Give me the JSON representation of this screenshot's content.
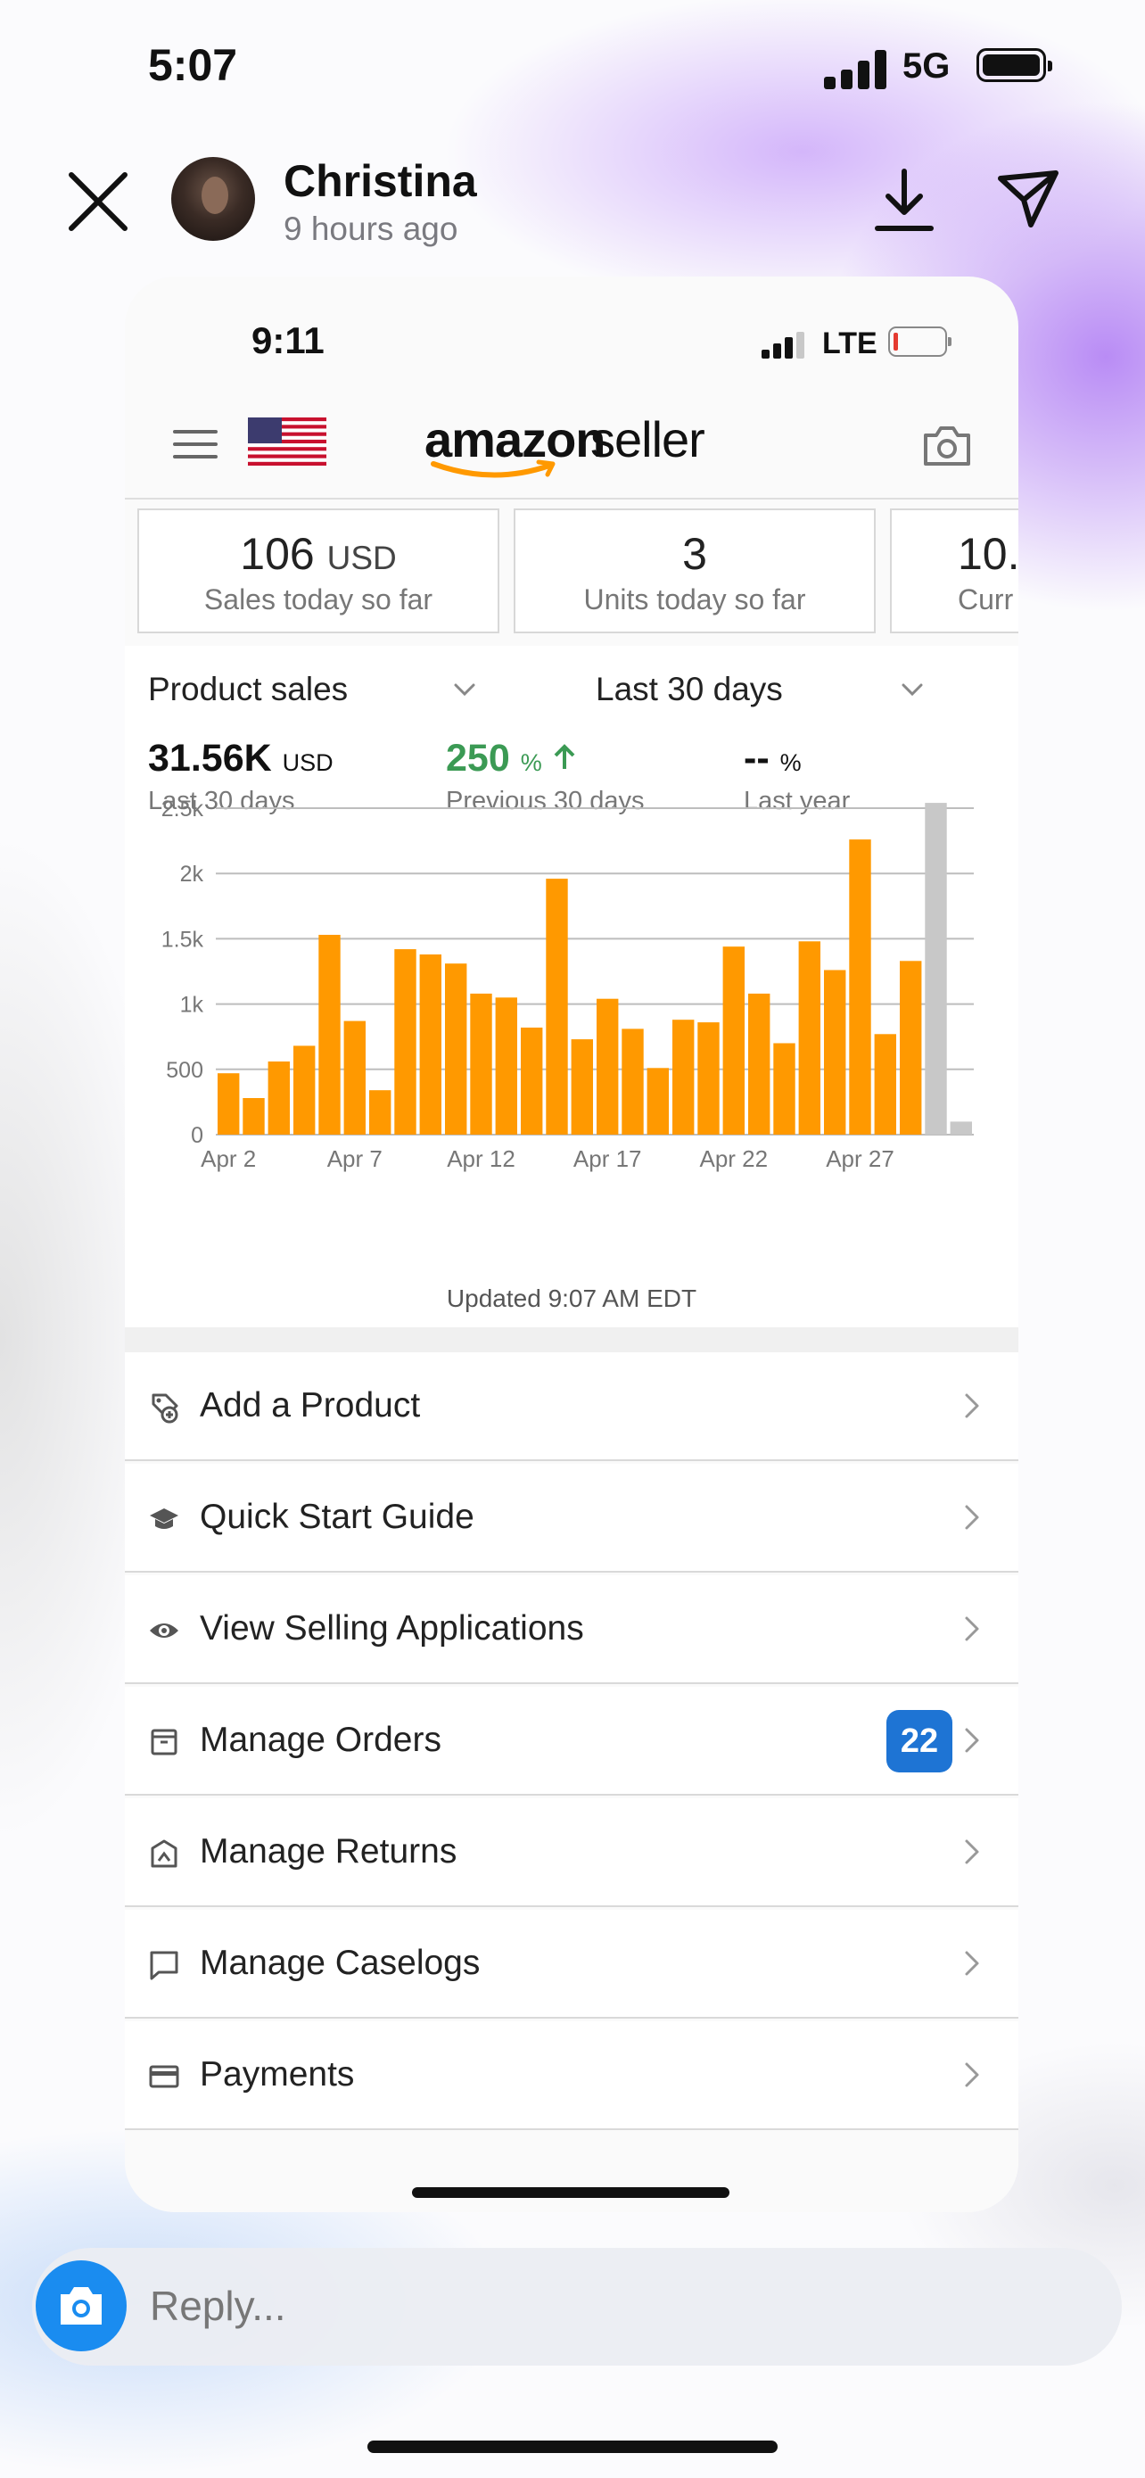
{
  "status_bar": {
    "time": "5:07",
    "network": "5G"
  },
  "story_header": {
    "user_name": "Christina",
    "time_ago": "9 hours ago"
  },
  "screenshot": {
    "status_bar": {
      "time": "9:11",
      "network": "LTE"
    },
    "header": {
      "logo_primary": "amazon",
      "logo_secondary": "seller",
      "icons": [
        "menu-icon",
        "us-flag-icon",
        "camera-icon"
      ]
    },
    "stats": [
      {
        "value": "106",
        "unit": "USD",
        "label": "Sales today so far"
      },
      {
        "value": "3",
        "unit": "",
        "label": "Units today so far"
      },
      {
        "value": "10.",
        "unit": "",
        "label": "Curr"
      }
    ],
    "sales": {
      "metric_dropdown": "Product sales",
      "range_dropdown": "Last 30 days",
      "metrics": [
        {
          "value": "31.56K",
          "unit": "USD",
          "label": "Last 30 days"
        },
        {
          "value": "250",
          "unit": "%",
          "label": "Previous 30 days"
        },
        {
          "value": "--",
          "unit": "%",
          "label": "Last year"
        }
      ],
      "updated": "Updated 9:07 AM EDT"
    },
    "menu": [
      {
        "label": "Add a Product",
        "icon": "add-product-icon"
      },
      {
        "label": "Quick Start Guide",
        "icon": "graduation-cap-icon"
      },
      {
        "label": "View Selling Applications",
        "icon": "eye-icon"
      },
      {
        "label": "Manage Orders",
        "icon": "box-icon",
        "badge": "22"
      },
      {
        "label": "Manage Returns",
        "icon": "return-icon"
      },
      {
        "label": "Manage Caselogs",
        "icon": "chat-icon"
      },
      {
        "label": "Payments",
        "icon": "card-icon"
      }
    ]
  },
  "reply": {
    "placeholder": "Reply..."
  },
  "colors": {
    "bar": "#FF9900",
    "bar_today": "#C8C8C8",
    "accent_blue": "#1E74D4",
    "positive_green": "#3B9A54"
  },
  "chart_data": {
    "type": "bar",
    "categories": [
      "Apr 2",
      "Apr 3",
      "Apr 4",
      "Apr 5",
      "Apr 6",
      "Apr 7",
      "Apr 8",
      "Apr 9",
      "Apr 10",
      "Apr 11",
      "Apr 12",
      "Apr 13",
      "Apr 14",
      "Apr 15",
      "Apr 16",
      "Apr 17",
      "Apr 18",
      "Apr 19",
      "Apr 20",
      "Apr 21",
      "Apr 22",
      "Apr 23",
      "Apr 24",
      "Apr 25",
      "Apr 26",
      "Apr 27",
      "Apr 28",
      "Apr 29",
      "Apr 30",
      "May 1"
    ],
    "values": [
      470,
      280,
      560,
      680,
      1530,
      870,
      340,
      1420,
      1380,
      1310,
      1080,
      1050,
      820,
      1960,
      730,
      1040,
      810,
      510,
      880,
      860,
      1440,
      1080,
      700,
      1480,
      1260,
      2260,
      770,
      1330,
      2540,
      100
    ],
    "highlight_last_n": 2,
    "tick_labels": [
      "Apr 2",
      "Apr 7",
      "Apr 12",
      "Apr 17",
      "Apr 22",
      "Apr 27"
    ],
    "tick_indices": [
      0,
      5,
      10,
      15,
      20,
      25
    ],
    "y_ticks": [
      0,
      500,
      1000,
      1500,
      2000,
      2500
    ],
    "y_tick_labels": [
      "0",
      "500",
      "1k",
      "1.5k",
      "2k",
      "2.5k"
    ],
    "ylim": [
      0,
      2500
    ],
    "grid": true,
    "title": "",
    "xlabel": "",
    "ylabel": ""
  }
}
